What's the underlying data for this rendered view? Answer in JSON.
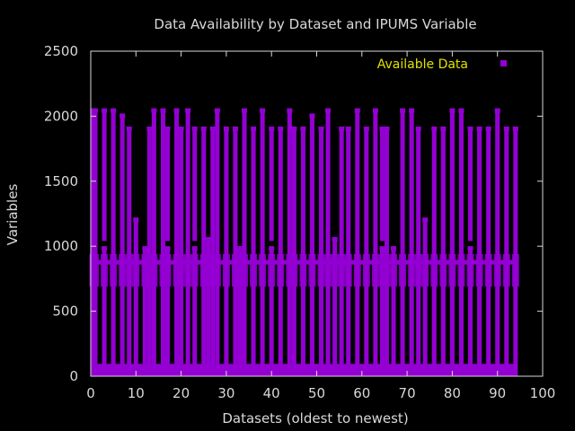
{
  "chart_data": {
    "type": "scatter",
    "title": "Data Availability by Dataset and IPUMS Variable",
    "xlabel": "Datasets (oldest to newest)",
    "ylabel": "Variables",
    "xlim": [
      0,
      100
    ],
    "ylim": [
      0,
      2500
    ],
    "x_ticks": [
      0,
      10,
      20,
      30,
      40,
      50,
      60,
      70,
      80,
      90,
      100
    ],
    "y_ticks": [
      0,
      500,
      1000,
      1500,
      2000,
      2500
    ],
    "x_tick_labels": [
      "0",
      "10",
      "20",
      "30",
      "40",
      "50",
      "60",
      "70",
      "80",
      "90",
      "100"
    ],
    "y_tick_labels": [
      "0",
      "500",
      "1000",
      "1500",
      "2000",
      "2500"
    ],
    "grid": false,
    "legend_position": "top-right",
    "series": [
      {
        "name": "Available Data",
        "color": "#9400d3",
        "datasets_x": [
          0,
          94
        ],
        "band_low_y": [
          0,
          95
        ],
        "band_high_y": [
          0,
          1000
        ],
        "wide_bands_y": [
          [
            690,
            940
          ]
        ],
        "line_y": 880,
        "dataset_columns": [
          {
            "x": 0.5,
            "ranges": [
              [
                0,
                2040
              ]
            ]
          },
          {
            "x": 1,
            "ranges": [
              [
                0,
                2040
              ]
            ]
          },
          {
            "x": 3,
            "ranges": [
              [
                0,
                980
              ],
              [
                1040,
                2040
              ]
            ]
          },
          {
            "x": 5,
            "ranges": [
              [
                0,
                2040
              ]
            ]
          },
          {
            "x": 7,
            "ranges": [
              [
                0,
                2000
              ]
            ]
          },
          {
            "x": 8.5,
            "ranges": [
              [
                0,
                1900
              ]
            ]
          },
          {
            "x": 10,
            "ranges": [
              [
                0,
                1200
              ]
            ]
          },
          {
            "x": 12,
            "ranges": [
              [
                0,
                980
              ]
            ]
          },
          {
            "x": 13,
            "ranges": [
              [
                0,
                1900
              ]
            ]
          },
          {
            "x": 14,
            "ranges": [
              [
                0,
                2040
              ]
            ]
          },
          {
            "x": 16,
            "ranges": [
              [
                0,
                2040
              ]
            ]
          },
          {
            "x": 17,
            "ranges": [
              [
                0,
                980
              ],
              [
                1040,
                1900
              ]
            ]
          },
          {
            "x": 19,
            "ranges": [
              [
                0,
                2040
              ]
            ]
          },
          {
            "x": 20,
            "ranges": [
              [
                0,
                1900
              ]
            ]
          },
          {
            "x": 21.5,
            "ranges": [
              [
                0,
                2040
              ]
            ]
          },
          {
            "x": 23,
            "ranges": [
              [
                0,
                980
              ],
              [
                1040,
                1900
              ]
            ]
          },
          {
            "x": 25,
            "ranges": [
              [
                0,
                1900
              ]
            ]
          },
          {
            "x": 26,
            "ranges": [
              [
                0,
                1050
              ]
            ]
          },
          {
            "x": 27,
            "ranges": [
              [
                0,
                1900
              ]
            ]
          },
          {
            "x": 28,
            "ranges": [
              [
                0,
                2040
              ]
            ]
          },
          {
            "x": 30,
            "ranges": [
              [
                0,
                1900
              ]
            ]
          },
          {
            "x": 32,
            "ranges": [
              [
                0,
                1900
              ]
            ]
          },
          {
            "x": 33,
            "ranges": [
              [
                0,
                980
              ]
            ]
          },
          {
            "x": 34,
            "ranges": [
              [
                0,
                2040
              ]
            ]
          },
          {
            "x": 36,
            "ranges": [
              [
                0,
                1900
              ]
            ]
          },
          {
            "x": 38,
            "ranges": [
              [
                0,
                2040
              ]
            ]
          },
          {
            "x": 40,
            "ranges": [
              [
                0,
                980
              ],
              [
                1040,
                1900
              ]
            ]
          },
          {
            "x": 42,
            "ranges": [
              [
                0,
                1900
              ]
            ]
          },
          {
            "x": 44,
            "ranges": [
              [
                0,
                2040
              ]
            ]
          },
          {
            "x": 45,
            "ranges": [
              [
                0,
                1900
              ]
            ]
          },
          {
            "x": 47,
            "ranges": [
              [
                0,
                1900
              ]
            ]
          },
          {
            "x": 49,
            "ranges": [
              [
                0,
                2000
              ]
            ]
          },
          {
            "x": 51,
            "ranges": [
              [
                0,
                1900
              ]
            ]
          },
          {
            "x": 52.5,
            "ranges": [
              [
                0,
                2040
              ]
            ]
          },
          {
            "x": 54,
            "ranges": [
              [
                0,
                1050
              ]
            ]
          },
          {
            "x": 55.5,
            "ranges": [
              [
                0,
                1900
              ]
            ]
          },
          {
            "x": 57,
            "ranges": [
              [
                0,
                1900
              ]
            ]
          },
          {
            "x": 59,
            "ranges": [
              [
                0,
                2040
              ]
            ]
          },
          {
            "x": 61,
            "ranges": [
              [
                0,
                1900
              ]
            ]
          },
          {
            "x": 63,
            "ranges": [
              [
                0,
                2040
              ]
            ]
          },
          {
            "x": 64.5,
            "ranges": [
              [
                0,
                980
              ],
              [
                1040,
                1900
              ]
            ]
          },
          {
            "x": 65.5,
            "ranges": [
              [
                0,
                1900
              ]
            ]
          },
          {
            "x": 67,
            "ranges": [
              [
                0,
                980
              ]
            ]
          },
          {
            "x": 69,
            "ranges": [
              [
                0,
                2040
              ]
            ]
          },
          {
            "x": 71,
            "ranges": [
              [
                0,
                2040
              ]
            ]
          },
          {
            "x": 72.5,
            "ranges": [
              [
                0,
                1900
              ]
            ]
          },
          {
            "x": 74,
            "ranges": [
              [
                0,
                1200
              ]
            ]
          },
          {
            "x": 76,
            "ranges": [
              [
                0,
                1900
              ]
            ]
          },
          {
            "x": 78,
            "ranges": [
              [
                0,
                1900
              ]
            ]
          },
          {
            "x": 80,
            "ranges": [
              [
                0,
                2040
              ]
            ]
          },
          {
            "x": 82,
            "ranges": [
              [
                0,
                2040
              ]
            ]
          },
          {
            "x": 84,
            "ranges": [
              [
                0,
                980
              ],
              [
                1040,
                1900
              ]
            ]
          },
          {
            "x": 86,
            "ranges": [
              [
                0,
                1900
              ]
            ]
          },
          {
            "x": 88,
            "ranges": [
              [
                0,
                1900
              ]
            ]
          },
          {
            "x": 90,
            "ranges": [
              [
                0,
                2040
              ]
            ]
          },
          {
            "x": 92,
            "ranges": [
              [
                0,
                1900
              ]
            ]
          },
          {
            "x": 94,
            "ranges": [
              [
                0,
                1900
              ]
            ]
          }
        ]
      }
    ]
  }
}
